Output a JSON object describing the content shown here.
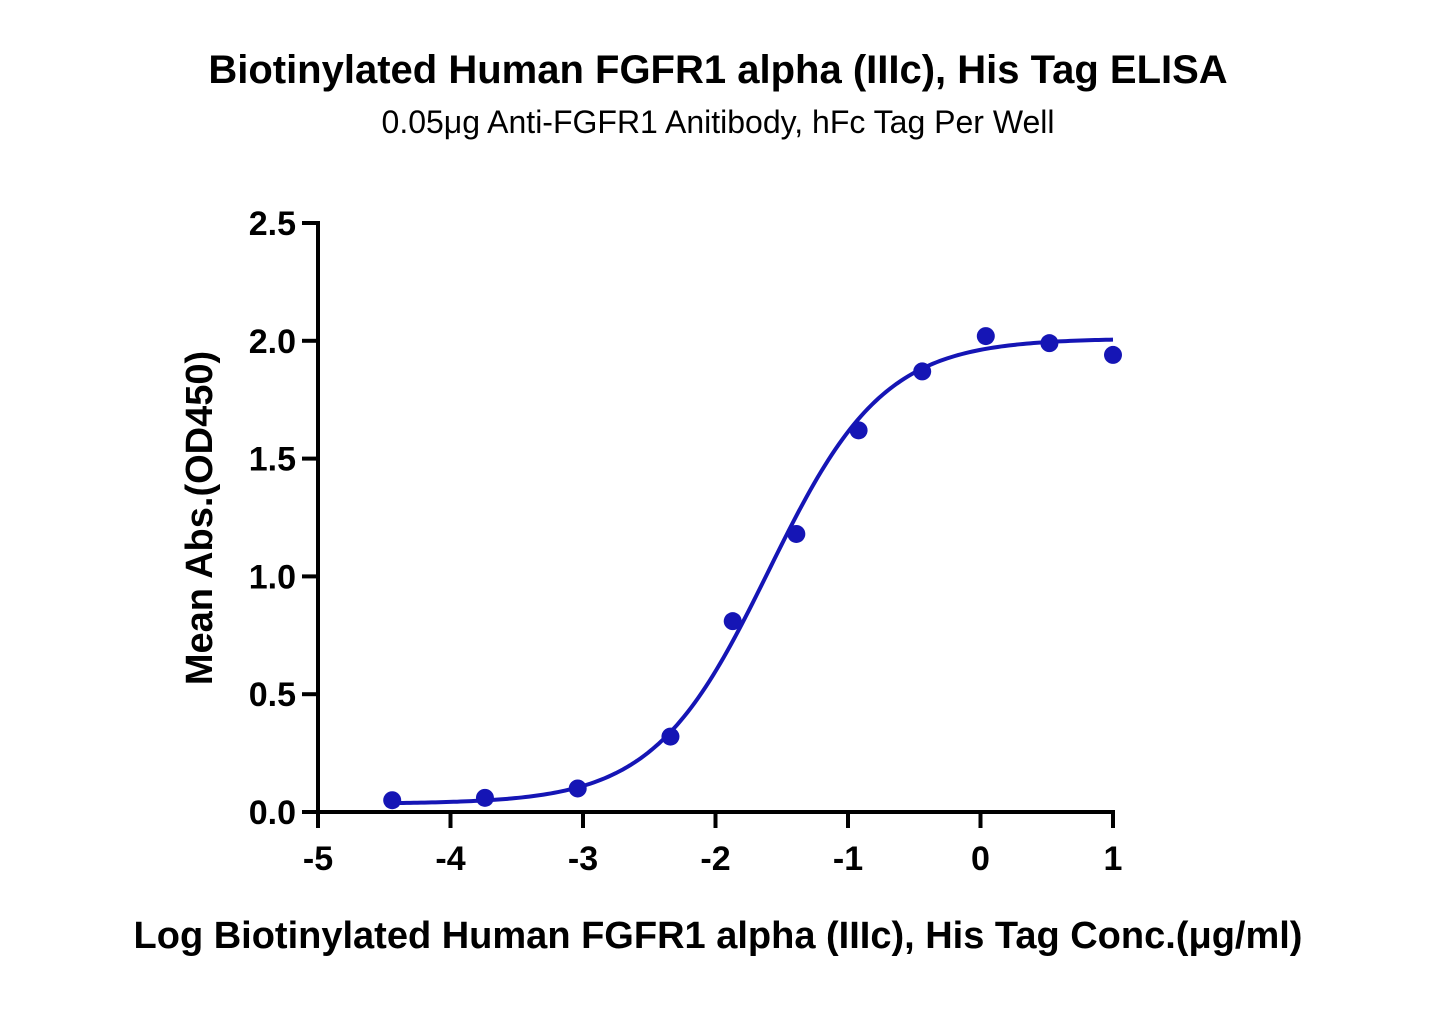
{
  "chart_data": {
    "type": "scatter",
    "title": "Biotinylated Human FGFR1 alpha (IIIc), His Tag ELISA",
    "subtitle": "0.05μg Anti-FGFR1 Anitibody, hFc Tag Per Well",
    "xlabel": "Log Biotinylated Human FGFR1 alpha (IIIc), His Tag Conc.(μg/ml)",
    "ylabel": "Mean Abs.(OD450)",
    "xlim": [
      -5,
      1
    ],
    "ylim": [
      0,
      2.5
    ],
    "x_ticks": [
      -5,
      -4,
      -3,
      -2,
      -1,
      0,
      1
    ],
    "x_tick_labels": [
      "-5",
      "-4",
      "-3",
      "-2",
      "-1",
      "0",
      "1"
    ],
    "y_ticks": [
      0,
      0.5,
      1.0,
      1.5,
      2.0,
      2.5
    ],
    "y_tick_labels": [
      "0.0",
      "0.5",
      "1.0",
      "1.5",
      "2.0",
      "2.5"
    ],
    "grid": false,
    "legend": "none",
    "color": "#1515b5",
    "series": [
      {
        "points": [
          {
            "x": -4.44,
            "y": 0.05
          },
          {
            "x": -3.74,
            "y": 0.06
          },
          {
            "x": -3.04,
            "y": 0.1
          },
          {
            "x": -2.34,
            "y": 0.32
          },
          {
            "x": -1.87,
            "y": 0.81
          },
          {
            "x": -1.39,
            "y": 1.18
          },
          {
            "x": -0.92,
            "y": 1.62
          },
          {
            "x": -0.44,
            "y": 1.87
          },
          {
            "x": 0.04,
            "y": 2.02
          },
          {
            "x": 0.52,
            "y": 1.99
          },
          {
            "x": 1.0,
            "y": 1.94
          }
        ],
        "fit_curve": {
          "model": "4PL",
          "bottom": 0.035,
          "top": 2.01,
          "log_ec50": -1.6,
          "hill_slope": 1.0,
          "x_range": [
            -4.44,
            1.0
          ]
        }
      }
    ]
  }
}
